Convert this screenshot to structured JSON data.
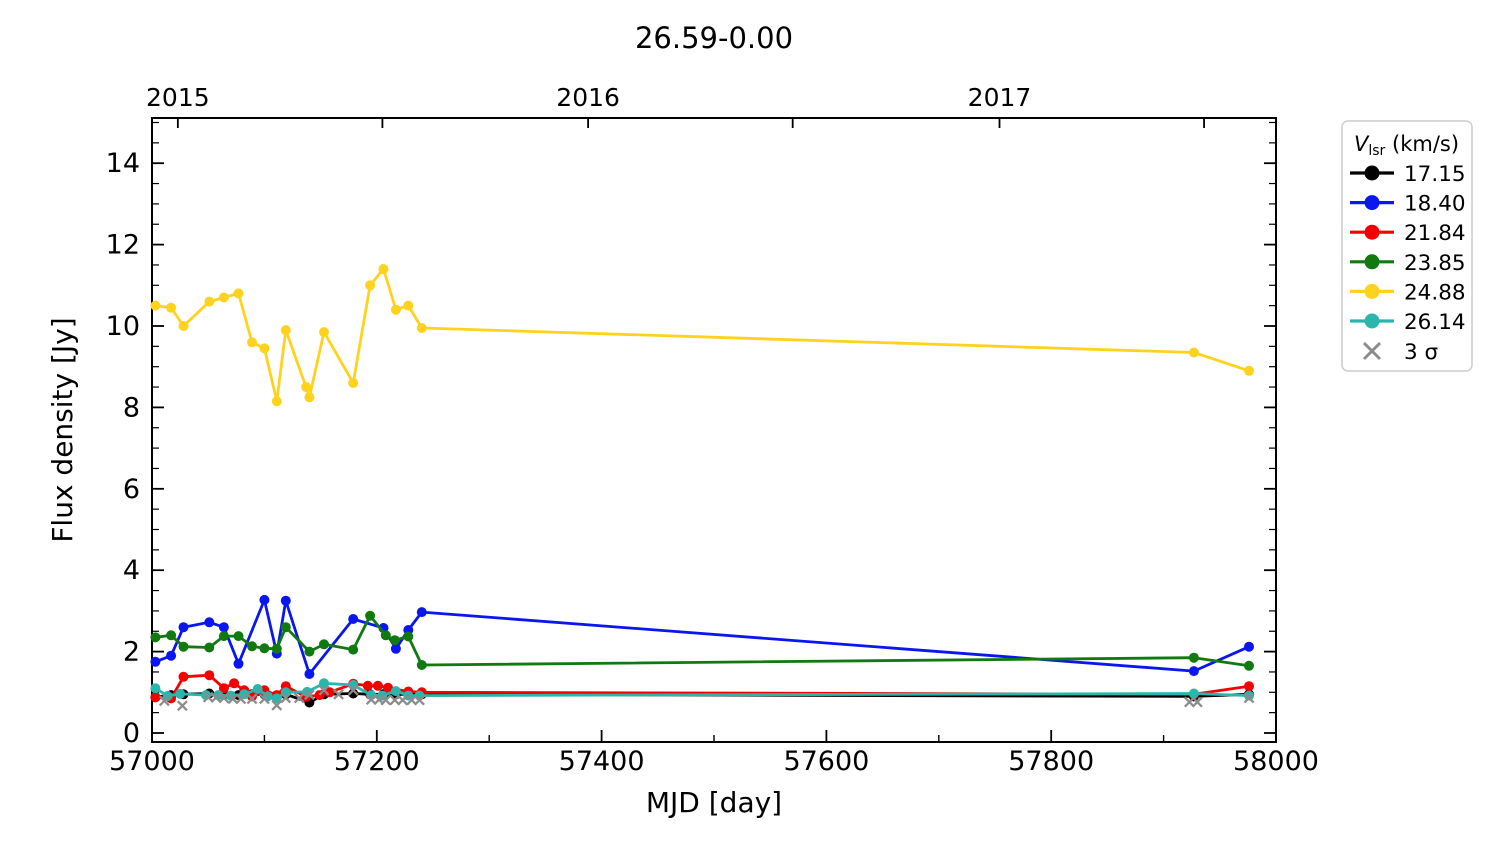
{
  "title": "26.59-0.00",
  "axes": {
    "xlabel": "MJD [day]",
    "ylabel": "Flux density [Jy]",
    "xlim": [
      57000,
      58000
    ],
    "ylim": [
      -0.25,
      15.1
    ],
    "x_major_ticks": [
      57000,
      57200,
      57400,
      57600,
      57800,
      58000
    ],
    "x_minor_ticks": [
      57100,
      57300,
      57500,
      57700,
      57900
    ],
    "y_major_ticks": [
      0,
      2,
      4,
      6,
      8,
      10,
      12,
      14
    ],
    "y_minor_ticks": [
      0.5,
      1,
      1.5,
      2.5,
      3,
      3.5,
      4.5,
      5,
      5.5,
      6.5,
      7,
      7.5,
      8.5,
      9,
      9.5,
      10.5,
      11,
      11.5,
      12.5,
      13,
      13.5,
      14.5,
      15
    ],
    "top_axis": {
      "tick_mjd": [
        57023,
        57205,
        57388,
        57570,
        57754,
        57936
      ],
      "labels": [
        {
          "text": "2015",
          "mjd": 57023
        },
        {
          "text": "2016",
          "mjd": 57388
        },
        {
          "text": "2017",
          "mjd": 57754
        }
      ]
    }
  },
  "legend": {
    "title": {
      "var": "V",
      "sub": "lsr",
      "units": " (km/s)"
    },
    "sigma_label": "3 σ"
  },
  "chart_data": {
    "type": "line",
    "title": "26.59-0.00",
    "xlabel": "MJD [day]",
    "ylabel": "Flux density [Jy]",
    "xlim": [
      57000,
      58000
    ],
    "ylim": [
      -0.25,
      15.1
    ],
    "grid": false,
    "legend_position": "outside-right-top",
    "legend_title": "V_lsr (km/s)",
    "series": [
      {
        "name": "17.15",
        "color": "#000000",
        "marker": "circle",
        "x": [
          57003,
          57017,
          57028,
          57051,
          57064,
          57077,
          57089,
          57100,
          57111,
          57119,
          57140,
          57153,
          57179,
          57194,
          57206,
          57217,
          57228,
          57240,
          57927,
          57976
        ],
        "y": [
          0.88,
          0.93,
          0.95,
          0.97,
          0.95,
          0.93,
          0.95,
          0.95,
          0.9,
          0.95,
          0.75,
          0.95,
          0.97,
          0.95,
          0.95,
          0.95,
          0.95,
          0.95,
          0.9,
          0.95
        ]
      },
      {
        "name": "18.40",
        "color": "#0a16f0",
        "marker": "circle",
        "x": [
          57003,
          57017,
          57028,
          57051,
          57064,
          57077,
          57100,
          57111,
          57119,
          57140,
          57179,
          57206,
          57217,
          57228,
          57240,
          57927,
          57976
        ],
        "y": [
          1.75,
          1.9,
          2.6,
          2.72,
          2.6,
          1.7,
          3.27,
          1.95,
          3.25,
          1.45,
          2.8,
          2.58,
          2.07,
          2.53,
          2.97,
          1.52,
          2.12
        ]
      },
      {
        "name": "21.84",
        "color": "#f50000",
        "marker": "circle",
        "x": [
          57003,
          57017,
          57028,
          57051,
          57064,
          57073,
          57082,
          57089,
          57100,
          57111,
          57119,
          57137,
          57149,
          57158,
          57179,
          57192,
          57201,
          57210,
          57228,
          57240,
          57927,
          57976
        ],
        "y": [
          0.88,
          0.85,
          1.38,
          1.42,
          1.1,
          1.22,
          1.05,
          0.9,
          1.05,
          0.93,
          1.15,
          0.89,
          0.93,
          1.0,
          1.21,
          1.16,
          1.16,
          1.11,
          1.02,
          1.0,
          0.95,
          1.15
        ]
      },
      {
        "name": "23.85",
        "color": "#107a10",
        "marker": "circle",
        "x": [
          57003,
          57017,
          57028,
          57051,
          57064,
          57077,
          57089,
          57100,
          57111,
          57119,
          57140,
          57153,
          57179,
          57194,
          57208,
          57216,
          57228,
          57240,
          57927,
          57976
        ],
        "y": [
          2.35,
          2.4,
          2.12,
          2.1,
          2.38,
          2.38,
          2.13,
          2.08,
          2.07,
          2.6,
          2.0,
          2.18,
          2.05,
          2.88,
          2.4,
          2.28,
          2.37,
          1.67,
          1.85,
          1.65
        ]
      },
      {
        "name": "24.88",
        "color": "#ffd21e",
        "marker": "circle",
        "x": [
          57003,
          57017,
          57028,
          57051,
          57064,
          57077,
          57089,
          57100,
          57111,
          57119,
          57137,
          57140,
          57153,
          57179,
          57194,
          57206,
          57217,
          57228,
          57240,
          57927,
          57976
        ],
        "y": [
          10.5,
          10.45,
          10.0,
          10.6,
          10.7,
          10.8,
          9.6,
          9.45,
          8.15,
          9.9,
          8.5,
          8.25,
          9.85,
          8.6,
          11.0,
          11.4,
          10.4,
          10.5,
          9.95,
          9.35,
          8.9
        ]
      },
      {
        "name": "26.14",
        "color": "#2cb5ac",
        "marker": "circle",
        "x": [
          57003,
          57014,
          57025,
          57048,
          57059,
          57070,
          57082,
          57094,
          57103,
          57111,
          57119,
          57138,
          57153,
          57179,
          57195,
          57205,
          57217,
          57228,
          57238,
          57927,
          57976
        ],
        "y": [
          1.1,
          0.91,
          0.96,
          0.93,
          0.93,
          0.92,
          0.95,
          1.08,
          0.9,
          0.85,
          1.0,
          1.01,
          1.22,
          1.18,
          0.93,
          0.92,
          1.03,
          0.92,
          0.92,
          0.97,
          0.92
        ]
      },
      {
        "name": "3 σ",
        "color": "#8c8c8c",
        "marker": "x",
        "x": [
          57011,
          57027,
          57050,
          57057,
          57064,
          57072,
          57079,
          57089,
          57100,
          57111,
          57119,
          57131,
          57140,
          57153,
          57166,
          57179,
          57195,
          57202,
          57208,
          57216,
          57223,
          57231,
          57238,
          57923,
          57930,
          57976
        ],
        "y": [
          0.79,
          0.67,
          0.88,
          0.87,
          0.86,
          0.84,
          0.84,
          0.84,
          0.84,
          0.68,
          0.86,
          0.86,
          0.94,
          1.05,
          0.95,
          1.05,
          0.82,
          0.82,
          0.81,
          0.81,
          0.81,
          0.81,
          0.81,
          0.76,
          0.76,
          0.86
        ]
      }
    ]
  },
  "colors": {
    "spine": "#000000",
    "legend_border": "#cccccc",
    "background": "#ffffff"
  }
}
